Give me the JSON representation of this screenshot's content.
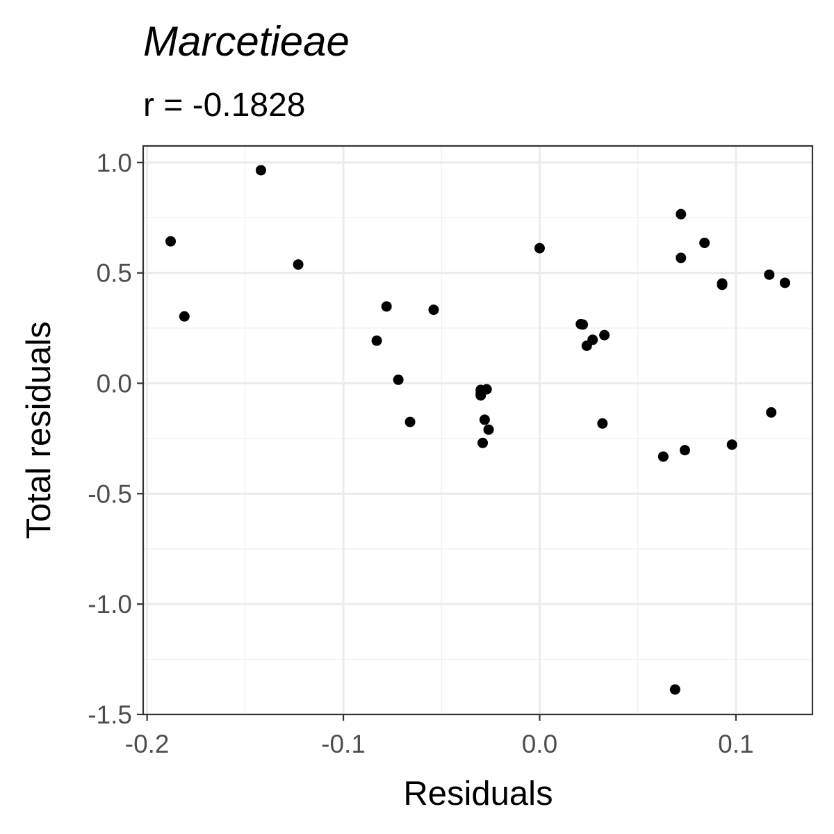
{
  "chart_data": {
    "type": "scatter",
    "title": "Marcetieae",
    "subtitle": "r = -0.1828",
    "xlabel": "Residuals",
    "ylabel": "Total residuals",
    "xlim": [
      -0.202,
      0.139
    ],
    "ylim": [
      -1.5,
      1.075
    ],
    "x_ticks": [
      -0.2,
      -0.1,
      0.0,
      0.1
    ],
    "x_tick_labels": [
      "-0.2",
      "-0.1",
      "0.0",
      "0.1"
    ],
    "y_ticks": [
      -1.5,
      -1.0,
      -0.5,
      0.0,
      0.5,
      1.0
    ],
    "y_tick_labels": [
      "-1.5",
      "-1.0",
      "-0.5",
      "0.0",
      "0.5",
      "1.0"
    ],
    "grid": true,
    "point_color": "#000000",
    "points": [
      {
        "x": -0.188,
        "y": 0.643
      },
      {
        "x": -0.181,
        "y": 0.303
      },
      {
        "x": -0.142,
        "y": 0.965
      },
      {
        "x": -0.123,
        "y": 0.538
      },
      {
        "x": -0.078,
        "y": 0.348
      },
      {
        "x": -0.083,
        "y": 0.193
      },
      {
        "x": -0.072,
        "y": 0.016
      },
      {
        "x": -0.066,
        "y": -0.175
      },
      {
        "x": -0.054,
        "y": 0.333
      },
      {
        "x": -0.03,
        "y": -0.03
      },
      {
        "x": -0.027,
        "y": -0.027
      },
      {
        "x": -0.03,
        "y": -0.055
      },
      {
        "x": -0.03,
        "y": -0.045
      },
      {
        "x": -0.028,
        "y": -0.165
      },
      {
        "x": -0.026,
        "y": -0.21
      },
      {
        "x": -0.029,
        "y": -0.27
      },
      {
        "x": 0.0,
        "y": 0.612
      },
      {
        "x": 0.021,
        "y": 0.268
      },
      {
        "x": 0.022,
        "y": 0.266
      },
      {
        "x": 0.027,
        "y": 0.197
      },
      {
        "x": 0.024,
        "y": 0.17
      },
      {
        "x": 0.033,
        "y": 0.218
      },
      {
        "x": 0.032,
        "y": -0.182
      },
      {
        "x": 0.063,
        "y": -0.332
      },
      {
        "x": 0.072,
        "y": 0.766
      },
      {
        "x": 0.072,
        "y": 0.568
      },
      {
        "x": 0.074,
        "y": -0.303
      },
      {
        "x": 0.084,
        "y": 0.636
      },
      {
        "x": 0.093,
        "y": 0.452
      },
      {
        "x": 0.093,
        "y": 0.446
      },
      {
        "x": 0.098,
        "y": -0.278
      },
      {
        "x": 0.117,
        "y": 0.492
      },
      {
        "x": 0.118,
        "y": -0.132
      },
      {
        "x": 0.125,
        "y": 0.455
      },
      {
        "x": 0.069,
        "y": -1.387
      }
    ]
  }
}
